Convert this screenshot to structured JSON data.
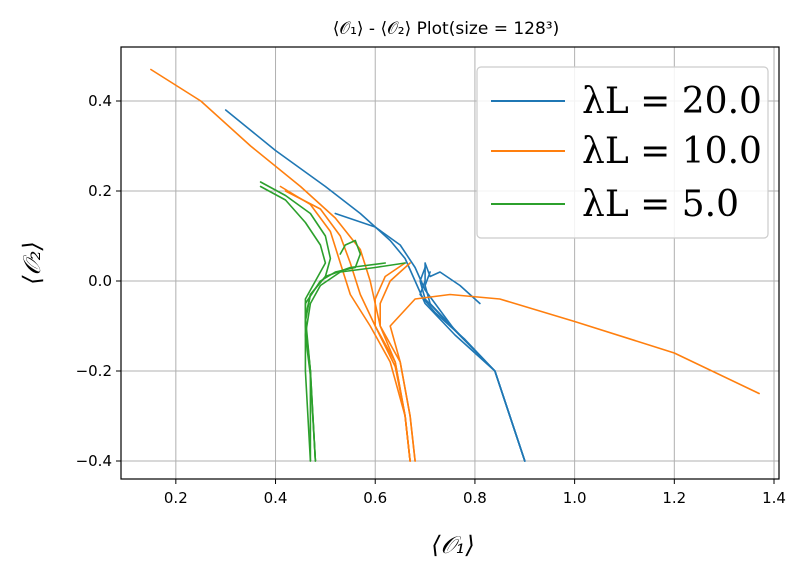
{
  "chart_data": {
    "type": "line",
    "title": "⟨𝒪₁⟩ - ⟨𝒪₂⟩ Plot(size = 128³)",
    "xlabel": "⟨𝒪₁⟩",
    "ylabel": "⟨𝒪₂⟩",
    "xlim": [
      0.09,
      1.41
    ],
    "ylim": [
      -0.44,
      0.52
    ],
    "xticks": [
      "0.2",
      "0.4",
      "0.6",
      "0.8",
      "1.0",
      "1.2",
      "1.4"
    ],
    "xtick_values": [
      0.2,
      0.4,
      0.6,
      0.8,
      1.0,
      1.2,
      1.4
    ],
    "yticks": [
      "−0.4",
      "−0.2",
      "0.0",
      "0.2",
      "0.4"
    ],
    "ytick_values": [
      -0.4,
      -0.2,
      0.0,
      0.2,
      0.4
    ],
    "grid": true,
    "legend_position": "top-right",
    "series": [
      {
        "name": "λL = 20.0",
        "label": "λ_L = 20.0",
        "color": "#1f77b4",
        "lines": [
          [
            [
              0.3,
              0.38
            ],
            [
              0.4,
              0.29
            ],
            [
              0.5,
              0.21
            ],
            [
              0.57,
              0.15
            ],
            [
              0.63,
              0.09
            ],
            [
              0.66,
              0.05
            ],
            [
              0.68,
              0.0
            ],
            [
              0.7,
              -0.05
            ],
            [
              0.76,
              -0.12
            ],
            [
              0.84,
              -0.2
            ],
            [
              0.9,
              -0.4
            ]
          ],
          [
            [
              0.52,
              0.15
            ],
            [
              0.6,
              0.12
            ],
            [
              0.65,
              0.08
            ],
            [
              0.68,
              0.03
            ],
            [
              0.7,
              -0.02
            ],
            [
              0.76,
              -0.11
            ],
            [
              0.84,
              -0.2
            ],
            [
              0.9,
              -0.4
            ]
          ],
          [
            [
              0.81,
              -0.05
            ],
            [
              0.77,
              -0.01
            ],
            [
              0.73,
              0.02
            ],
            [
              0.71,
              0.01
            ],
            [
              0.7,
              0.04
            ],
            [
              0.7,
              0.0
            ],
            [
              0.69,
              -0.03
            ],
            [
              0.72,
              -0.07
            ],
            [
              0.78,
              -0.13
            ],
            [
              0.84,
              -0.2
            ],
            [
              0.9,
              -0.4
            ]
          ],
          [
            [
              0.7,
              0.03
            ],
            [
              0.69,
              0.0
            ],
            [
              0.7,
              -0.04
            ],
            [
              0.76,
              -0.11
            ],
            [
              0.84,
              -0.2
            ],
            [
              0.9,
              -0.4
            ]
          ],
          [
            [
              0.71,
              0.02
            ],
            [
              0.7,
              -0.01
            ],
            [
              0.71,
              -0.05
            ],
            [
              0.77,
              -0.12
            ],
            [
              0.84,
              -0.2
            ],
            [
              0.9,
              -0.4
            ]
          ]
        ]
      },
      {
        "name": "λL = 10.0",
        "label": "λ_L = 10.0",
        "color": "#ff7f0e",
        "lines": [
          [
            [
              0.15,
              0.47
            ],
            [
              0.25,
              0.4
            ],
            [
              0.35,
              0.3
            ],
            [
              0.45,
              0.21
            ],
            [
              0.52,
              0.14
            ],
            [
              0.57,
              0.07
            ],
            [
              0.59,
              0.0
            ],
            [
              0.61,
              -0.1
            ],
            [
              0.65,
              -0.18
            ],
            [
              0.67,
              -0.3
            ],
            [
              0.68,
              -0.4
            ]
          ],
          [
            [
              0.42,
              0.2
            ],
            [
              0.49,
              0.16
            ],
            [
              0.53,
              0.1
            ],
            [
              0.55,
              0.04
            ],
            [
              0.57,
              -0.03
            ],
            [
              0.6,
              -0.1
            ],
            [
              0.64,
              -0.18
            ],
            [
              0.66,
              -0.3
            ],
            [
              0.67,
              -0.4
            ]
          ],
          [
            [
              0.41,
              0.21
            ],
            [
              0.47,
              0.17
            ],
            [
              0.51,
              0.11
            ],
            [
              0.53,
              0.04
            ],
            [
              0.55,
              -0.03
            ],
            [
              0.59,
              -0.1
            ],
            [
              0.63,
              -0.18
            ],
            [
              0.66,
              -0.3
            ],
            [
              0.67,
              -0.4
            ]
          ],
          [
            [
              1.37,
              -0.25
            ],
            [
              1.2,
              -0.16
            ],
            [
              1.0,
              -0.09
            ],
            [
              0.85,
              -0.04
            ],
            [
              0.75,
              -0.03
            ],
            [
              0.68,
              -0.04
            ],
            [
              0.63,
              -0.1
            ],
            [
              0.65,
              -0.18
            ],
            [
              0.67,
              -0.3
            ],
            [
              0.68,
              -0.4
            ]
          ],
          [
            [
              0.67,
              0.04
            ],
            [
              0.63,
              0.0
            ],
            [
              0.61,
              -0.05
            ],
            [
              0.61,
              -0.1
            ],
            [
              0.64,
              -0.18
            ],
            [
              0.66,
              -0.3
            ],
            [
              0.67,
              -0.4
            ]
          ],
          [
            [
              0.66,
              0.04
            ],
            [
              0.62,
              0.01
            ],
            [
              0.6,
              -0.04
            ],
            [
              0.6,
              -0.1
            ],
            [
              0.64,
              -0.19
            ],
            [
              0.66,
              -0.3
            ],
            [
              0.67,
              -0.4
            ]
          ]
        ]
      },
      {
        "name": "λL = 5.0",
        "label": "λ_L = 5.0",
        "color": "#2ca02c",
        "lines": [
          [
            [
              0.37,
              0.22
            ],
            [
              0.42,
              0.19
            ],
            [
              0.47,
              0.15
            ],
            [
              0.5,
              0.1
            ],
            [
              0.51,
              0.05
            ],
            [
              0.5,
              0.01
            ],
            [
              0.47,
              -0.03
            ],
            [
              0.46,
              -0.08
            ],
            [
              0.47,
              -0.2
            ],
            [
              0.47,
              -0.4
            ]
          ],
          [
            [
              0.37,
              0.21
            ],
            [
              0.42,
              0.18
            ],
            [
              0.46,
              0.13
            ],
            [
              0.49,
              0.08
            ],
            [
              0.5,
              0.04
            ],
            [
              0.48,
              0.0
            ],
            [
              0.46,
              -0.04
            ],
            [
              0.46,
              -0.1
            ],
            [
              0.47,
              -0.2
            ],
            [
              0.48,
              -0.4
            ]
          ],
          [
            [
              0.53,
              0.06
            ],
            [
              0.54,
              0.08
            ],
            [
              0.56,
              0.09
            ],
            [
              0.57,
              0.06
            ],
            [
              0.56,
              0.03
            ],
            [
              0.52,
              0.02
            ],
            [
              0.49,
              0.0
            ],
            [
              0.46,
              -0.05
            ],
            [
              0.46,
              -0.2
            ],
            [
              0.47,
              -0.4
            ]
          ],
          [
            [
              0.66,
              0.04
            ],
            [
              0.6,
              0.03
            ],
            [
              0.53,
              0.02
            ],
            [
              0.49,
              -0.01
            ],
            [
              0.47,
              -0.05
            ],
            [
              0.46,
              -0.12
            ],
            [
              0.47,
              -0.21
            ],
            [
              0.48,
              -0.4
            ]
          ],
          [
            [
              0.62,
              0.04
            ],
            [
              0.55,
              0.03
            ],
            [
              0.5,
              0.01
            ],
            [
              0.47,
              -0.03
            ],
            [
              0.46,
              -0.09
            ],
            [
              0.47,
              -0.2
            ],
            [
              0.48,
              -0.4
            ]
          ]
        ]
      }
    ]
  }
}
